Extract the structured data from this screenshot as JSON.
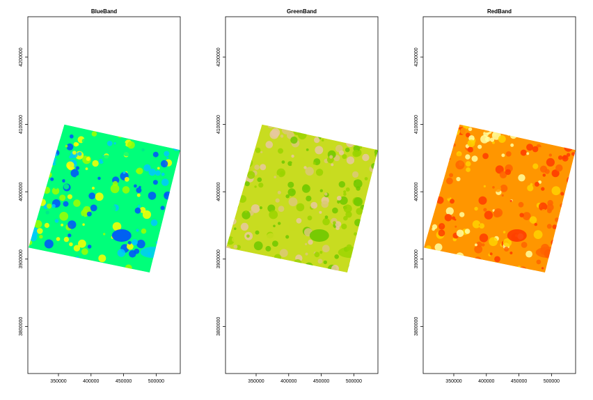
{
  "chart_data": [
    {
      "type": "heatmap",
      "title": "BlueBand",
      "xlim": [
        303000,
        537000
      ],
      "ylim": [
        3730000,
        4260000
      ],
      "x_ticks": [
        350000,
        400000,
        450000,
        500000
      ],
      "y_ticks": [
        3800000,
        3900000,
        4000000,
        4100000,
        4200000
      ],
      "x_tick_labels": [
        "350000",
        "400000",
        "450000",
        "500000"
      ],
      "y_tick_labels": [
        "3800000",
        "3900000",
        "4000000",
        "4100000",
        "4200000"
      ],
      "scene_corners": [
        [
          359000,
          4100000
        ],
        [
          537000,
          4062000
        ],
        [
          490000,
          3880000
        ],
        [
          304000,
          3917000
        ]
      ],
      "palette": [
        "#0050ff",
        "#00c8ff",
        "#00ff7a",
        "#a0ff00",
        "#ffff00"
      ],
      "background": "#ffffff",
      "grid": false
    },
    {
      "type": "heatmap",
      "title": "GreenBand",
      "xlim": [
        303000,
        537000
      ],
      "ylim": [
        3730000,
        4260000
      ],
      "x_ticks": [
        350000,
        400000,
        450000,
        500000
      ],
      "y_ticks": [
        3800000,
        3900000,
        4000000,
        4100000,
        4200000
      ],
      "x_tick_labels": [
        "350000",
        "400000",
        "450000",
        "500000"
      ],
      "y_tick_labels": [
        "3800000",
        "3900000",
        "4000000",
        "4100000",
        "4200000"
      ],
      "scene_corners": [
        [
          359000,
          4100000
        ],
        [
          537000,
          4062000
        ],
        [
          490000,
          3880000
        ],
        [
          304000,
          3917000
        ]
      ],
      "palette": [
        "#6ec800",
        "#9ad400",
        "#c8dc20",
        "#dcc878",
        "#e8c8a0"
      ],
      "background": "#ffffff",
      "grid": false
    },
    {
      "type": "heatmap",
      "title": "RedBand",
      "xlim": [
        303000,
        537000
      ],
      "ylim": [
        3730000,
        4260000
      ],
      "x_ticks": [
        350000,
        400000,
        450000,
        500000
      ],
      "y_ticks": [
        3800000,
        3900000,
        4000000,
        4100000,
        4200000
      ],
      "x_tick_labels": [
        "350000",
        "400000",
        "450000",
        "500000"
      ],
      "y_tick_labels": [
        "3800000",
        "3900000",
        "4000000",
        "4100000",
        "4200000"
      ],
      "scene_corners": [
        [
          359000,
          4100000
        ],
        [
          537000,
          4062000
        ],
        [
          490000,
          3880000
        ],
        [
          304000,
          3917000
        ]
      ],
      "palette": [
        "#ff3c00",
        "#ff6400",
        "#ff9600",
        "#ffd200",
        "#ffffa0"
      ],
      "background": "#ffffff",
      "grid": false
    }
  ]
}
